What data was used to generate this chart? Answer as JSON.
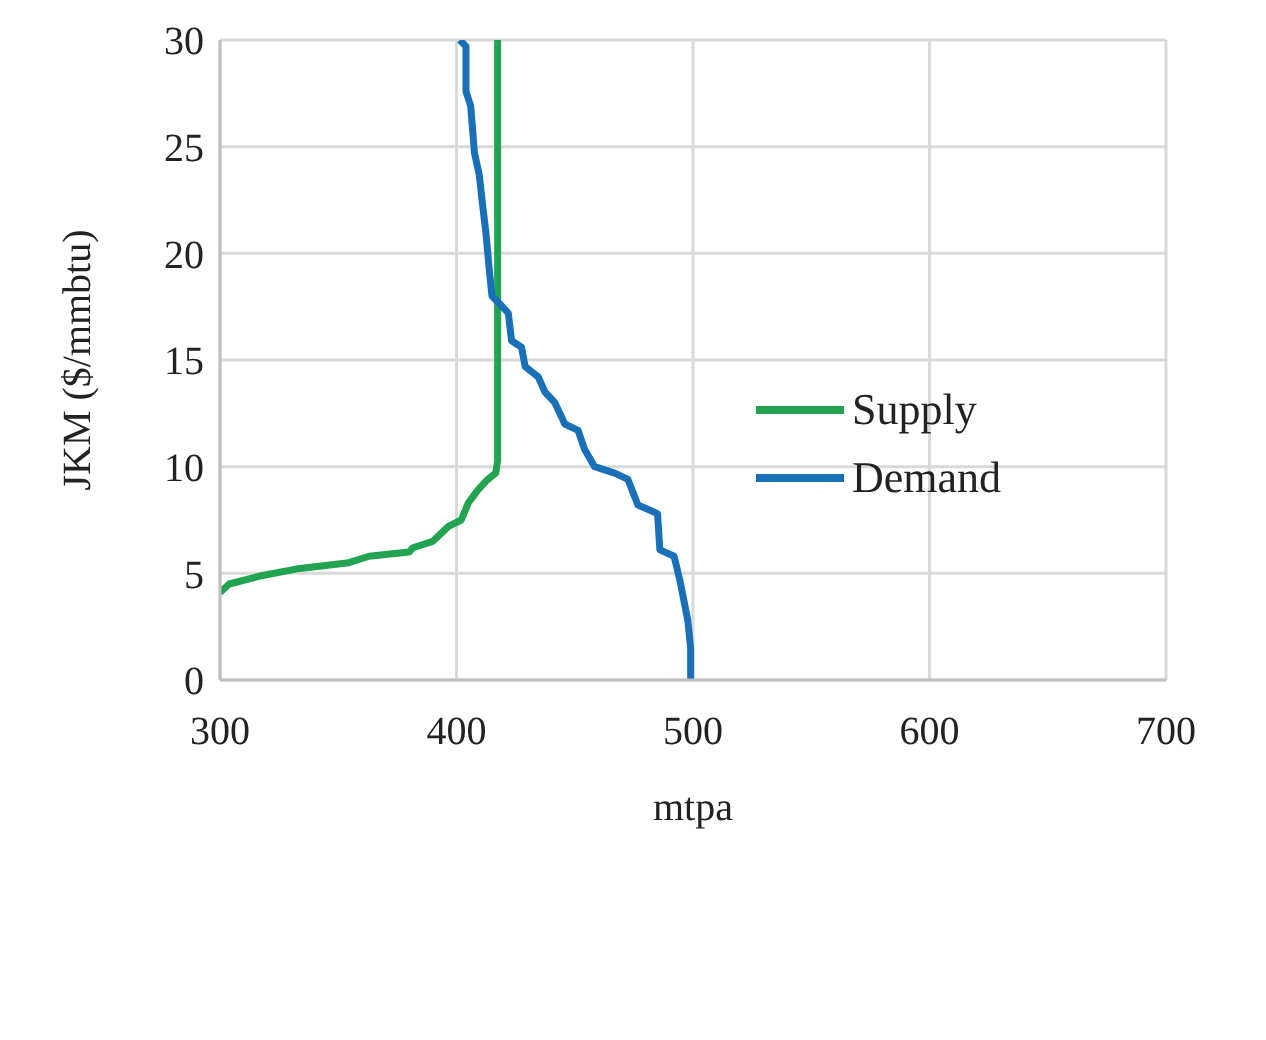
{
  "chart_data": {
    "type": "line",
    "xlabel": "mtpa",
    "ylabel": "JKM ($/mmbtu)",
    "xlim": [
      300,
      700
    ],
    "xticks": [
      300,
      400,
      500,
      600,
      700
    ],
    "ylim": [
      0,
      30
    ],
    "yticks": [
      0,
      5,
      10,
      15,
      20,
      25,
      30
    ],
    "grid": true,
    "legend": "right",
    "marker": "none",
    "line_style": "solid",
    "series": [
      {
        "name": "Supply",
        "color": "#22a34f",
        "x": [
          300,
          303.9,
          318,
          332,
          354.5,
          363,
          380,
          381.5,
          390,
          396.6,
          402,
          405,
          409,
          413.2,
          416.6,
          417.4,
          417.4
        ],
        "values": [
          4.1,
          4.5,
          4.9,
          5.2,
          5.5,
          5.8,
          6,
          6.2,
          6.5,
          7.2,
          7.5,
          8.3,
          8.9,
          9.4,
          9.7,
          10.3,
          30
        ]
      },
      {
        "name": "Demand",
        "color": "#1a70b8",
        "x": [
          401.4,
          404,
          404,
          406,
          407.6,
          409.6,
          411,
          412.4,
          413.8,
          415,
          418.5,
          421.9,
          423.3,
          427.5,
          429,
          434.6,
          437.4,
          441.6,
          445.8,
          451.4,
          454.2,
          458.4,
          466.9,
          472.5,
          476.7,
          485,
          486,
          492,
          494.4,
          497.8,
          499,
          499
        ],
        "values": [
          30,
          29.7,
          27.6,
          26.9,
          24.7,
          23.7,
          22.3,
          21,
          19.3,
          18,
          17.6,
          17.2,
          15.9,
          15.6,
          14.7,
          14.2,
          13.5,
          13,
          12,
          11.7,
          10.8,
          10,
          9.7,
          9.4,
          8.2,
          7.8,
          6.1,
          5.8,
          4.7,
          2.8,
          1.5,
          0
        ]
      }
    ]
  }
}
